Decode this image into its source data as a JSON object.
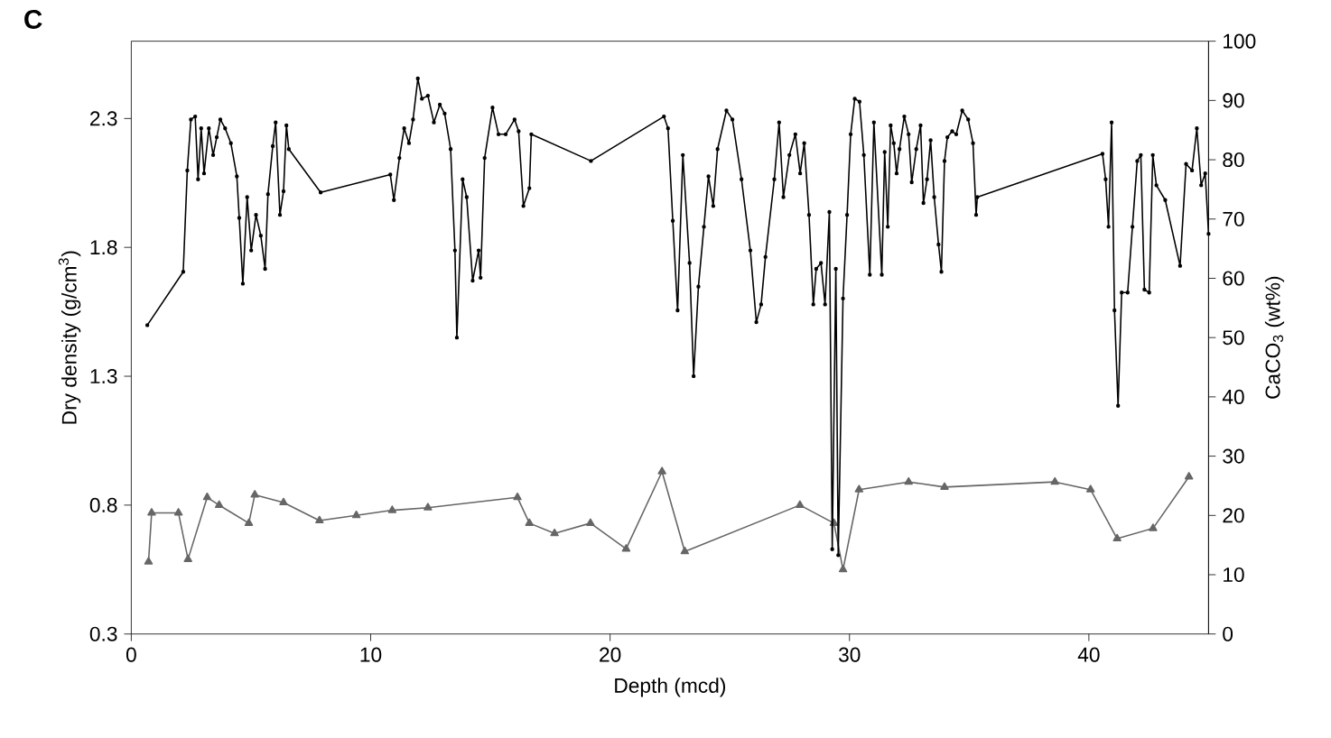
{
  "chart_data": {
    "type": "line",
    "title": "C",
    "xlabel": "Depth (mcd)",
    "ylabel": "Dry density (g/cm$^{3}$)",
    "y2label": "CaCO$_{3}$ (wt%)",
    "xlim": [
      0,
      45
    ],
    "xticks": [
      0,
      10,
      20,
      30,
      40
    ],
    "ylim": [
      0.3,
      2.6
    ],
    "yticks": [
      0.3,
      0.8,
      1.3,
      1.8,
      2.3
    ],
    "y2lim": [
      0,
      100
    ],
    "y2ticks": [
      0,
      10,
      20,
      30,
      40,
      50,
      60,
      70,
      80,
      90,
      100
    ],
    "line_style": "solid",
    "series": [
      {
        "color": "#000000",
        "axis": "y2",
        "marker": "circle",
        "x": [
          0.67,
          2.17,
          2.34,
          2.49,
          2.67,
          2.79,
          2.92,
          3.04,
          3.24,
          3.42,
          3.57,
          3.72,
          3.92,
          4.16,
          4.41,
          4.51,
          4.66,
          4.84,
          5.01,
          5.21,
          5.41,
          5.59,
          5.71,
          5.91,
          6.03,
          6.21,
          6.36,
          6.48,
          6.58,
          7.91,
          10.82,
          10.97,
          11.2,
          11.4,
          11.6,
          11.77,
          11.97,
          12.14,
          12.39,
          12.64,
          12.89,
          13.09,
          13.34,
          13.52,
          13.6,
          13.84,
          14.01,
          14.26,
          14.51,
          14.59,
          14.76,
          15.09,
          15.34,
          15.64,
          16.01,
          16.18,
          16.38,
          16.63,
          16.71,
          19.2,
          22.25,
          22.42,
          22.62,
          22.82,
          23.04,
          23.32,
          23.49,
          23.69,
          23.92,
          24.11,
          24.31,
          24.49,
          24.86,
          25.11,
          25.49,
          25.86,
          26.11,
          26.31,
          26.49,
          26.86,
          27.06,
          27.24,
          27.49,
          27.74,
          27.94,
          28.11,
          28.31,
          28.49,
          28.61,
          28.81,
          28.98,
          29.16,
          29.28,
          29.43,
          29.53,
          29.73,
          29.9,
          30.05,
          30.22,
          30.42,
          30.6,
          30.85,
          31.02,
          31.35,
          31.47,
          31.6,
          31.72,
          31.85,
          31.97,
          32.09,
          32.29,
          32.47,
          32.6,
          32.79,
          32.97,
          33.09,
          33.24,
          33.39,
          33.54,
          33.72,
          33.84,
          33.97,
          34.09,
          34.29,
          34.46,
          34.71,
          34.96,
          35.16,
          35.29,
          35.34,
          40.57,
          40.7,
          40.82,
          40.95,
          41.07,
          41.22,
          41.37,
          41.62,
          41.82,
          42.02,
          42.17,
          42.32,
          42.52,
          42.67,
          42.82,
          43.19,
          43.81,
          44.06,
          44.31,
          44.51,
          44.69,
          44.86,
          45.0
        ],
        "values": [
          52.1,
          61.1,
          78.2,
          86.8,
          87.3,
          76.7,
          85.3,
          77.7,
          85.3,
          80.8,
          83.8,
          86.8,
          85.3,
          82.8,
          77.2,
          70.2,
          59.1,
          73.7,
          64.7,
          70.7,
          67.2,
          61.6,
          74.2,
          82.3,
          86.3,
          70.7,
          74.7,
          85.8,
          81.8,
          74.5,
          77.5,
          73.2,
          80.3,
          85.3,
          82.8,
          86.8,
          93.7,
          90.3,
          90.8,
          86.3,
          89.3,
          87.8,
          81.8,
          64.7,
          50.0,
          76.7,
          73.7,
          59.6,
          64.7,
          60.1,
          80.3,
          88.8,
          84.3,
          84.3,
          86.8,
          84.8,
          72.2,
          75.2,
          84.3,
          79.8,
          87.3,
          85.3,
          69.7,
          54.6,
          80.8,
          62.6,
          43.5,
          58.6,
          68.7,
          77.2,
          72.2,
          81.8,
          88.3,
          86.8,
          76.7,
          64.7,
          52.6,
          55.6,
          63.6,
          76.7,
          86.3,
          73.7,
          80.8,
          84.3,
          77.7,
          82.8,
          70.7,
          55.6,
          61.6,
          62.6,
          55.6,
          71.2,
          14.3,
          61.6,
          13.3,
          56.6,
          70.7,
          84.3,
          90.3,
          89.8,
          80.8,
          60.6,
          86.3,
          60.6,
          81.3,
          68.7,
          85.8,
          82.8,
          77.7,
          81.8,
          87.3,
          84.3,
          76.2,
          81.8,
          85.8,
          72.7,
          76.7,
          83.3,
          73.7,
          65.7,
          61.1,
          79.8,
          83.8,
          84.8,
          84.3,
          88.3,
          86.8,
          82.8,
          70.7,
          73.7,
          81.0,
          76.7,
          68.7,
          86.3,
          54.6,
          38.5,
          57.6,
          57.6,
          68.7,
          79.8,
          80.8,
          58.1,
          57.6,
          80.8,
          75.7,
          73.2,
          62.1,
          79.3,
          78.2,
          85.3,
          75.7,
          77.7,
          67.5
        ]
      },
      {
        "color": "#666666",
        "marker": "triangle",
        "x": [
          0.72,
          0.85,
          1.97,
          2.37,
          3.17,
          3.67,
          4.91,
          5.16,
          6.36,
          7.86,
          9.4,
          10.9,
          12.39,
          16.13,
          16.63,
          17.68,
          19.18,
          20.67,
          22.17,
          23.12,
          27.93,
          29.35,
          29.73,
          30.4,
          32.47,
          33.97,
          38.58,
          40.07,
          41.18,
          42.68,
          44.18
        ],
        "values": [
          0.58,
          0.77,
          0.77,
          0.59,
          0.83,
          0.8,
          0.73,
          0.84,
          0.81,
          0.74,
          0.76,
          0.78,
          0.79,
          0.83,
          0.73,
          0.69,
          0.73,
          0.63,
          0.93,
          0.62,
          0.8,
          0.73,
          0.55,
          0.86,
          0.89,
          0.87,
          0.89,
          0.86,
          0.67,
          0.71,
          0.91
        ]
      }
    ]
  }
}
